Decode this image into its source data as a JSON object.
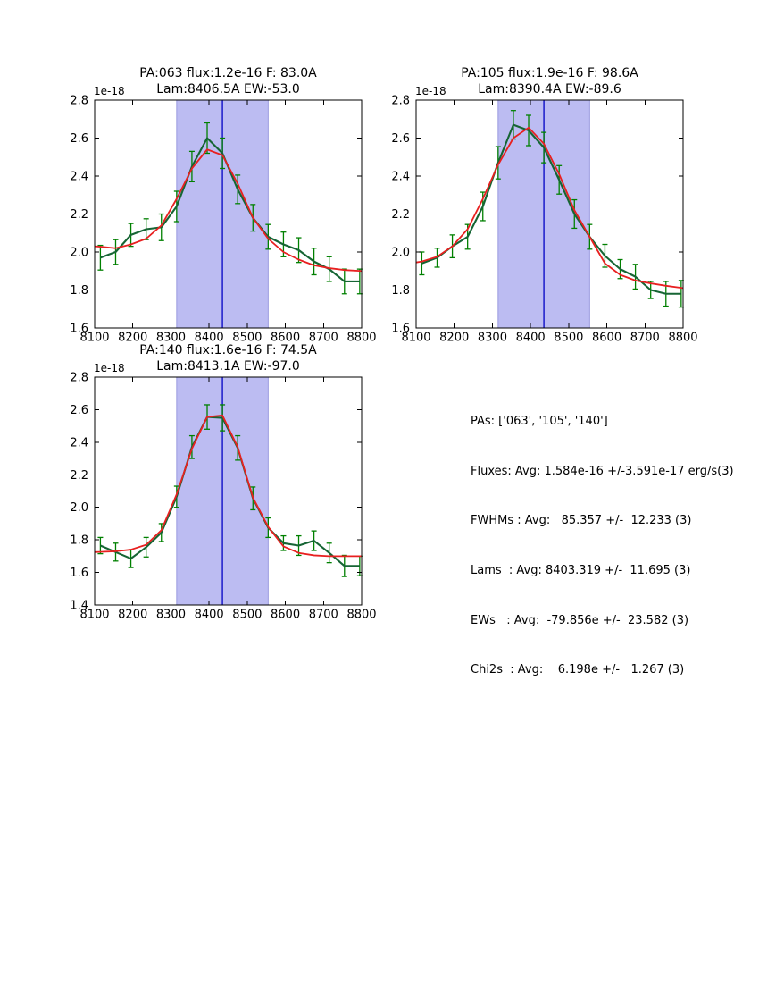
{
  "figure": {
    "background": "#ffffff"
  },
  "colors": {
    "span_fill": "#bcbcf2",
    "span_edge": "#9a9ae0",
    "center_line": "#0f0fc8",
    "data_line": "#166534",
    "error_bar": "#008000",
    "fit_line": "#e82020",
    "frame": "#000000"
  },
  "stats_panel": {
    "lines": [
      "PAs: ['063', '105', '140']",
      "Fluxes: Avg: 1.584e-16 +/-3.591e-17 erg/s(3)",
      "FWHMs : Avg:   85.357 +/-  12.233 (3)",
      "Lams  : Avg: 8403.319 +/-  11.695 (3)",
      "EWs   : Avg:  -79.856e +/-  23.582 (3)",
      "Chi2s  : Avg:    6.198e +/-   1.267 (3)"
    ]
  },
  "chart_data": [
    {
      "type": "line",
      "title": {
        "line1": "PA:063 flux:1.2e-16 F: 83.0A",
        "line2": "Lam:8406.5A EW:-53.0"
      },
      "xlabel": "",
      "ylabel": "",
      "offset_label": "1e-18",
      "xlim": [
        8100,
        8800
      ],
      "ylim": [
        1.6,
        2.8
      ],
      "xticks": [
        8100,
        8200,
        8300,
        8400,
        8500,
        8600,
        8700,
        8800
      ],
      "yticks": [
        1.6,
        1.8,
        2.0,
        2.2,
        2.4,
        2.6,
        2.8
      ],
      "span": [
        8315,
        8555
      ],
      "vline": 8435,
      "x": [
        8115,
        8155,
        8195,
        8235,
        8275,
        8315,
        8355,
        8395,
        8435,
        8475,
        8515,
        8555,
        8595,
        8635,
        8675,
        8715,
        8755,
        8795
      ],
      "series": [
        {
          "name": "spectrum",
          "values": [
            1.97,
            2.0,
            2.09,
            2.12,
            2.13,
            2.24,
            2.45,
            2.6,
            2.52,
            2.33,
            2.18,
            2.08,
            2.04,
            2.01,
            1.95,
            1.91,
            1.845,
            1.845
          ],
          "errors": [
            0.065,
            0.065,
            0.06,
            0.055,
            0.07,
            0.08,
            0.08,
            0.08,
            0.08,
            0.075,
            0.07,
            0.065,
            0.065,
            0.065,
            0.07,
            0.065,
            0.065,
            0.065
          ]
        },
        {
          "name": "gaussian-fit",
          "x": [
            8100,
            8115,
            8155,
            8195,
            8235,
            8275,
            8315,
            8355,
            8395,
            8435,
            8475,
            8515,
            8555,
            8595,
            8635,
            8675,
            8715,
            8755,
            8800
          ],
          "values": [
            2.03,
            2.028,
            2.02,
            2.04,
            2.07,
            2.14,
            2.28,
            2.44,
            2.54,
            2.51,
            2.36,
            2.18,
            2.07,
            2.0,
            1.96,
            1.93,
            1.915,
            1.905,
            1.9
          ]
        }
      ]
    },
    {
      "type": "line",
      "title": {
        "line1": "PA:105 flux:1.9e-16 F: 98.6A",
        "line2": "Lam:8390.4A EW:-89.6"
      },
      "xlabel": "",
      "ylabel": "",
      "offset_label": "1e-18",
      "xlim": [
        8100,
        8800
      ],
      "ylim": [
        1.6,
        2.8
      ],
      "xticks": [
        8100,
        8200,
        8300,
        8400,
        8500,
        8600,
        8700,
        8800
      ],
      "yticks": [
        1.6,
        1.8,
        2.0,
        2.2,
        2.4,
        2.6,
        2.8
      ],
      "span": [
        8315,
        8555
      ],
      "vline": 8435,
      "x": [
        8115,
        8155,
        8195,
        8235,
        8275,
        8315,
        8355,
        8395,
        8435,
        8475,
        8515,
        8555,
        8595,
        8635,
        8675,
        8715,
        8755,
        8795
      ],
      "series": [
        {
          "name": "spectrum",
          "values": [
            1.94,
            1.97,
            2.03,
            2.08,
            2.24,
            2.47,
            2.67,
            2.64,
            2.55,
            2.38,
            2.2,
            2.08,
            1.98,
            1.91,
            1.87,
            1.8,
            1.78,
            1.78
          ],
          "errors": [
            0.06,
            0.05,
            0.06,
            0.065,
            0.075,
            0.085,
            0.075,
            0.08,
            0.08,
            0.075,
            0.075,
            0.065,
            0.06,
            0.05,
            0.065,
            0.045,
            0.065,
            0.07
          ]
        },
        {
          "name": "gaussian-fit",
          "x": [
            8100,
            8115,
            8155,
            8195,
            8235,
            8275,
            8315,
            8355,
            8395,
            8435,
            8475,
            8515,
            8555,
            8595,
            8635,
            8675,
            8715,
            8755,
            8800
          ],
          "values": [
            1.945,
            1.95,
            1.975,
            2.03,
            2.12,
            2.28,
            2.46,
            2.6,
            2.655,
            2.57,
            2.41,
            2.22,
            2.08,
            1.94,
            1.88,
            1.85,
            1.835,
            1.822,
            1.81
          ]
        }
      ]
    },
    {
      "type": "line",
      "title": {
        "line1": "PA:140 flux:1.6e-16 F: 74.5A",
        "line2": "Lam:8413.1A EW:-97.0"
      },
      "xlabel": "",
      "ylabel": "",
      "offset_label": "1e-18",
      "xlim": [
        8100,
        8800
      ],
      "ylim": [
        1.4,
        2.8
      ],
      "xticks": [
        8100,
        8200,
        8300,
        8400,
        8500,
        8600,
        8700,
        8800
      ],
      "yticks": [
        1.4,
        1.6,
        1.8,
        2.0,
        2.2,
        2.4,
        2.6,
        2.8
      ],
      "span": [
        8315,
        8555
      ],
      "vline": 8435,
      "x": [
        8115,
        8155,
        8195,
        8235,
        8275,
        8315,
        8355,
        8395,
        8435,
        8475,
        8515,
        8555,
        8595,
        8635,
        8675,
        8715,
        8755,
        8795
      ],
      "series": [
        {
          "name": "spectrum",
          "values": [
            1.765,
            1.725,
            1.685,
            1.755,
            1.845,
            2.065,
            2.37,
            2.555,
            2.55,
            2.365,
            2.055,
            1.875,
            1.78,
            1.765,
            1.795,
            1.72,
            1.64,
            1.64
          ],
          "errors": [
            0.05,
            0.055,
            0.055,
            0.06,
            0.055,
            0.065,
            0.07,
            0.075,
            0.08,
            0.075,
            0.07,
            0.06,
            0.045,
            0.06,
            0.06,
            0.06,
            0.065,
            0.06
          ]
        },
        {
          "name": "gaussian-fit",
          "x": [
            8100,
            8115,
            8155,
            8195,
            8235,
            8275,
            8315,
            8355,
            8395,
            8435,
            8475,
            8515,
            8555,
            8595,
            8635,
            8675,
            8715,
            8755,
            8800
          ],
          "values": [
            1.725,
            1.726,
            1.73,
            1.74,
            1.77,
            1.86,
            2.08,
            2.36,
            2.555,
            2.565,
            2.37,
            2.06,
            1.88,
            1.76,
            1.72,
            1.705,
            1.7,
            1.7,
            1.7
          ]
        }
      ]
    }
  ]
}
